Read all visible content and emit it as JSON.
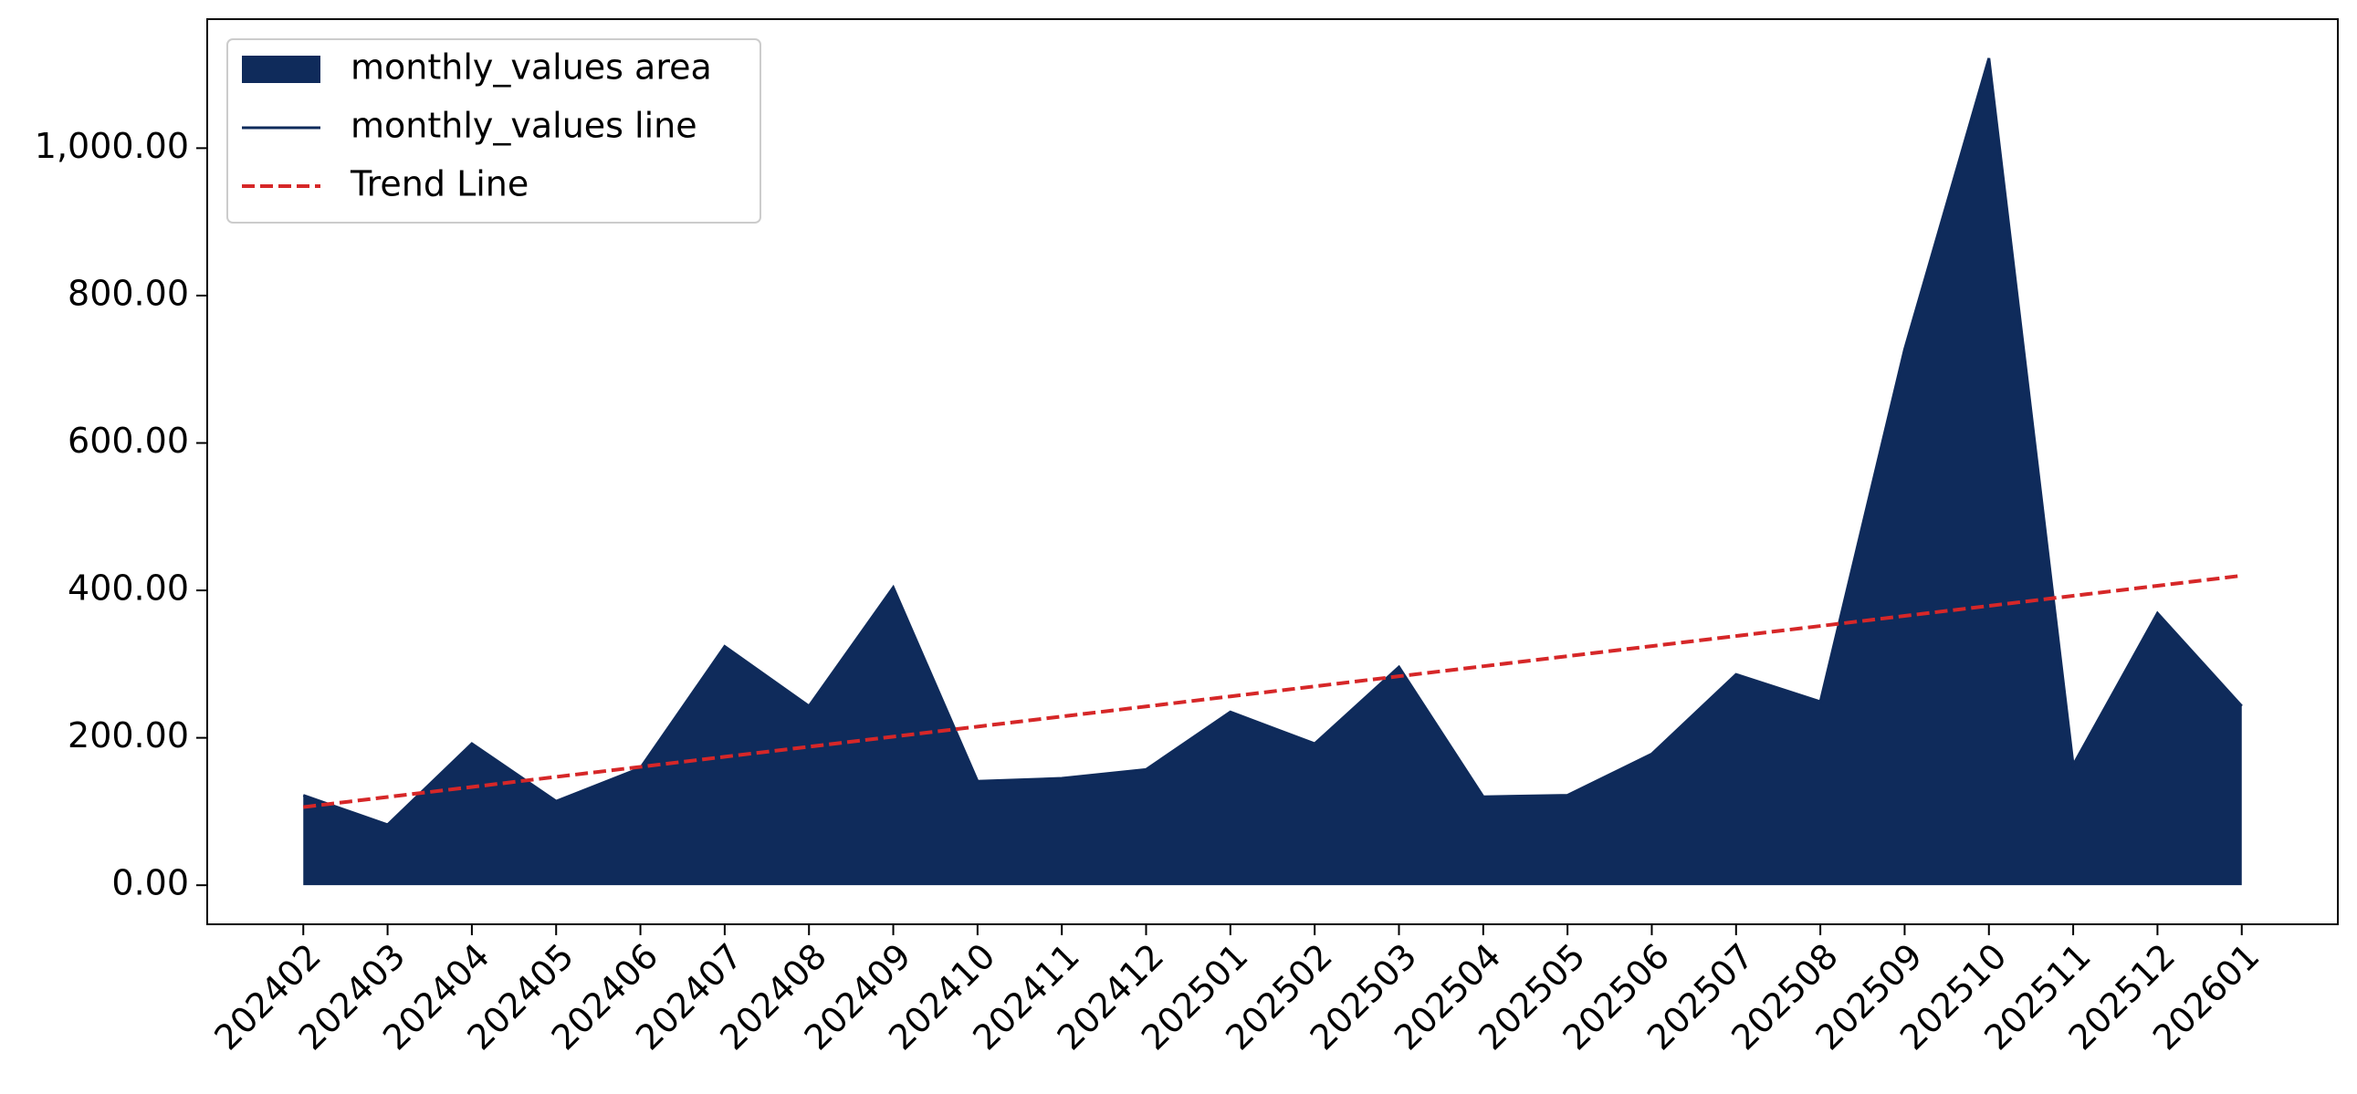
{
  "chart_data": {
    "type": "area",
    "categories": [
      "202402",
      "202403",
      "202404",
      "202405",
      "202406",
      "202407",
      "202408",
      "202409",
      "202410",
      "202411",
      "202412",
      "202501",
      "202502",
      "202503",
      "202504",
      "202505",
      "202506",
      "202507",
      "202508",
      "202509",
      "202510",
      "202511",
      "202512",
      "202601"
    ],
    "series": [
      {
        "name": "monthly_values area",
        "style": "area",
        "color": "#0f2b5b",
        "values": [
          122,
          82,
          192,
          114,
          159,
          324,
          243,
          404,
          141,
          145,
          157,
          235,
          192,
          296,
          120,
          122,
          178,
          286,
          249,
          727,
          1122,
          163,
          369,
          243
        ]
      },
      {
        "name": "monthly_values line",
        "style": "line",
        "color": "#0f2b5b",
        "values": [
          122,
          82,
          192,
          114,
          159,
          324,
          243,
          404,
          141,
          145,
          157,
          235,
          192,
          296,
          120,
          122,
          178,
          286,
          249,
          727,
          1122,
          163,
          369,
          243
        ]
      },
      {
        "name": "Trend Line",
        "style": "dashed",
        "color": "#d62728",
        "values": [
          106,
          119.7,
          133.3,
          147,
          160.6,
          174.3,
          187.9,
          201.6,
          215.2,
          228.9,
          242.5,
          256.2,
          269.8,
          283.5,
          297.1,
          310.8,
          324.4,
          338.1,
          351.7,
          365.4,
          379,
          392.7,
          406.3,
          420
        ]
      }
    ],
    "xlim": [
      -1.14,
      24.14
    ],
    "ylim": [
      -53,
      1175
    ],
    "yticks": [
      {
        "value": 0,
        "label": "0.00"
      },
      {
        "value": 200,
        "label": "200.00"
      },
      {
        "value": 400,
        "label": "400.00"
      },
      {
        "value": 600,
        "label": "600.00"
      },
      {
        "value": 800,
        "label": "800.00"
      },
      {
        "value": 1000,
        "label": "1,000.00"
      }
    ],
    "legend": "upper left"
  }
}
